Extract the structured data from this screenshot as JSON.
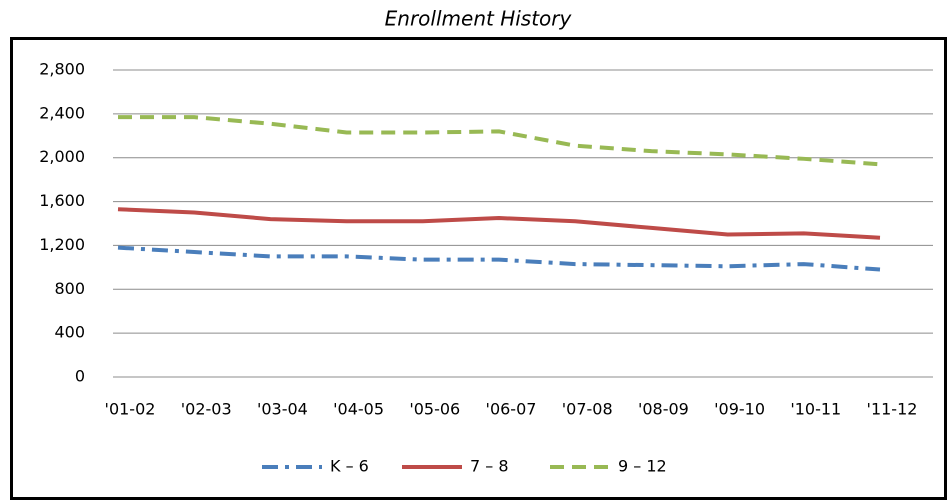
{
  "chart_data": {
    "type": "line",
    "title": "Enrollment History",
    "categories": [
      "'01-02",
      "'02-03",
      "'03-04",
      "'04-05",
      "'05-06",
      "'06-07",
      "'07-08",
      "'08-09",
      "'09-10",
      "'10-11",
      "'11-12"
    ],
    "series": [
      {
        "name": "K – 6",
        "color": "#4a7ebb",
        "dash": "dash-dot",
        "values": [
          1180,
          1140,
          1100,
          1100,
          1070,
          1070,
          1030,
          1020,
          1010,
          1030,
          980
        ]
      },
      {
        "name": "7 – 8",
        "color": "#be4b48",
        "dash": "solid",
        "values": [
          1530,
          1500,
          1440,
          1420,
          1420,
          1450,
          1420,
          1360,
          1300,
          1310,
          1270
        ]
      },
      {
        "name": "9 – 12",
        "color": "#98b954",
        "dash": "dash",
        "values": [
          2370,
          2370,
          2310,
          2230,
          2230,
          2240,
          2110,
          2060,
          2030,
          1990,
          1940
        ]
      }
    ],
    "ylim": [
      0,
      2800
    ],
    "yticks": [
      0,
      400,
      800,
      {
        "value": 1200,
        "label": "1,200"
      },
      {
        "value": 1600,
        "label": "1,600"
      },
      {
        "value": 2000,
        "label": "2,000"
      },
      {
        "value": 2400,
        "label": "2,400"
      },
      {
        "value": 2800,
        "label": "2,800"
      }
    ],
    "grid": true,
    "legend": "bottom"
  }
}
